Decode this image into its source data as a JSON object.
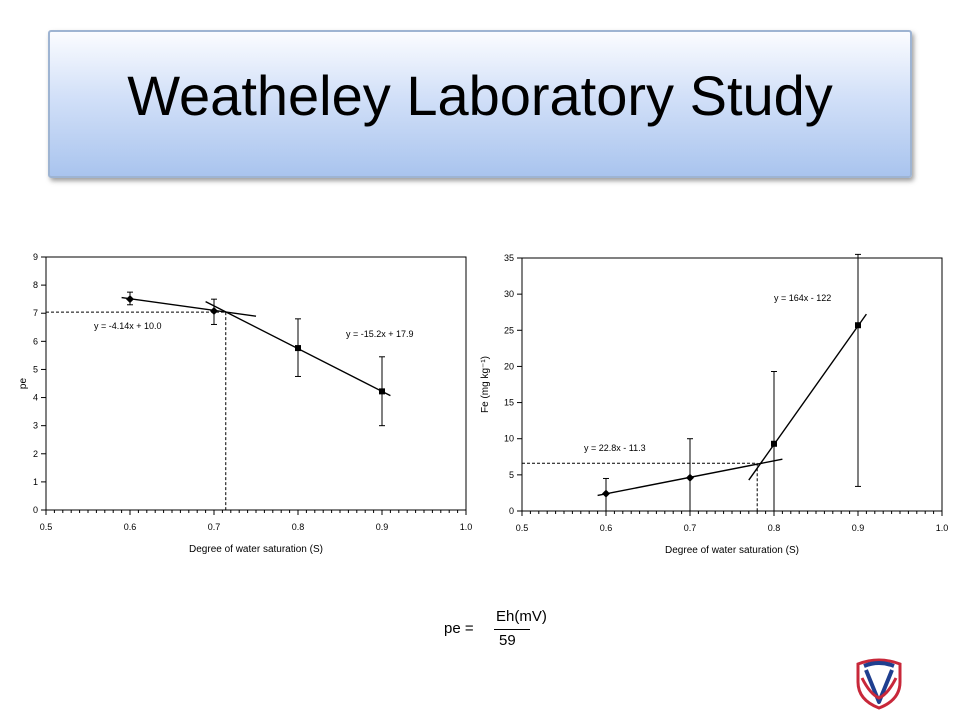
{
  "title": "Weatheley Laboratory Study",
  "chart_data": [
    {
      "type": "scatter",
      "xlabel": "Degree of water saturation (S)",
      "ylabel": "pe",
      "xlim": [
        0.5,
        1.0
      ],
      "ylim": [
        0,
        9
      ],
      "x_ticks": [
        "0.5",
        "0.6",
        "0.7",
        "0.8",
        "0.9",
        "1.0"
      ],
      "y_ticks": [
        "0",
        "1",
        "2",
        "3",
        "4",
        "5",
        "6",
        "7",
        "8",
        "9"
      ],
      "series": [
        {
          "x": [
            0.6,
            0.7,
            0.8,
            0.9
          ],
          "y": [
            7.5,
            7.08,
            5.76,
            4.22
          ],
          "err_low": [
            7.3,
            6.6,
            4.75,
            3.0
          ],
          "err_high": [
            7.75,
            7.5,
            6.8,
            5.45
          ],
          "marker_colors": [
            "diamond",
            "diamond",
            "square",
            "square"
          ]
        }
      ],
      "fits": [
        {
          "label": "y = -4.14x + 10.0",
          "slope": -4.14,
          "intercept": 10.0,
          "x_range": [
            0.59,
            0.75
          ]
        },
        {
          "label": "y = -15.2x + 17.9",
          "slope": -15.2,
          "intercept": 17.9,
          "x_range": [
            0.69,
            0.91
          ]
        }
      ],
      "guide": {
        "x": 0.714,
        "y": 7.04
      },
      "grid": false
    },
    {
      "type": "scatter",
      "xlabel": "Degree of water saturation (S)",
      "ylabel": "Fe (mg kg⁻¹)",
      "xlim": [
        0.5,
        1.0
      ],
      "ylim": [
        0,
        35
      ],
      "x_ticks": [
        "0.5",
        "0.6",
        "0.7",
        "0.8",
        "0.9",
        "1.0"
      ],
      "y_ticks": [
        "0",
        "5",
        "10",
        "15",
        "20",
        "25",
        "30",
        "35"
      ],
      "series": [
        {
          "x": [
            0.6,
            0.7,
            0.8,
            0.9
          ],
          "y": [
            2.4,
            4.6,
            9.3,
            25.7
          ],
          "err_low": [
            0,
            0,
            0,
            3.4
          ],
          "err_high": [
            4.5,
            10,
            19.3,
            35.5
          ],
          "marker_colors": [
            "diamond",
            "diamond",
            "square",
            "square"
          ]
        }
      ],
      "fits": [
        {
          "label": "y = 22.8x - 11.3",
          "slope": 22.8,
          "intercept": -11.3,
          "x_range": [
            0.59,
            0.81
          ]
        },
        {
          "label": "y = 164x - 122",
          "slope": 164,
          "intercept": -122,
          "x_range": [
            0.77,
            0.91
          ]
        }
      ],
      "guide": {
        "x": 0.78,
        "y": 6.6
      },
      "grid": false
    }
  ],
  "formula": {
    "lhs": "pe =",
    "numerator": "Eh(mV)",
    "denominator": "59"
  }
}
